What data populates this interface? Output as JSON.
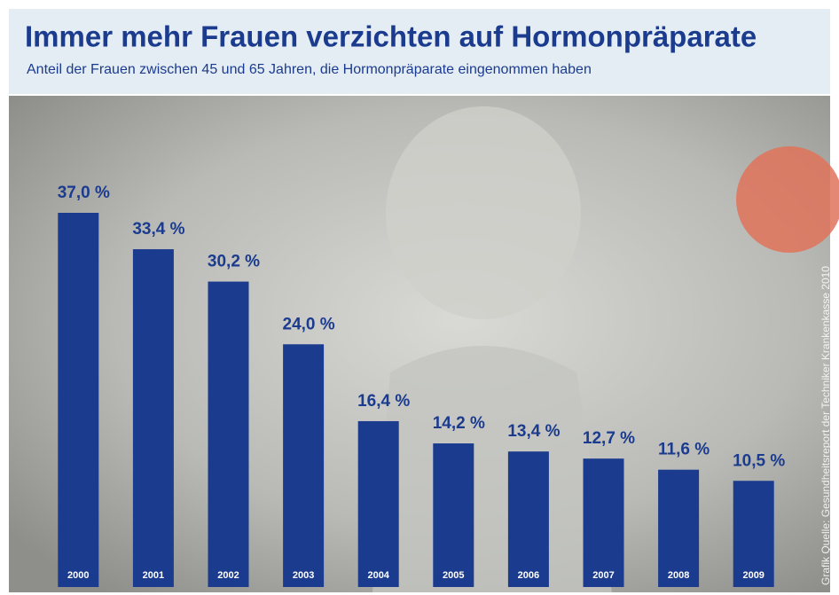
{
  "chart_data": {
    "type": "bar",
    "title": "Immer mehr Frauen verzichten auf Hormonpräparate",
    "subtitle": "Anteil der Frauen zwischen 45 und 65 Jahren, die Hormonpräparate eingenommen haben",
    "source": "Grafik Quelle: Gesundheitsreport der Techniker Krankenkasse 2010",
    "categories": [
      "2000",
      "2001",
      "2002",
      "2003",
      "2004",
      "2005",
      "2006",
      "2007",
      "2008",
      "2009"
    ],
    "values": [
      37.0,
      33.4,
      30.2,
      24.0,
      16.4,
      14.2,
      13.4,
      12.7,
      11.6,
      10.5
    ],
    "value_labels": [
      "37,0 %",
      "33,4 %",
      "30,2 %",
      "24,0 %",
      "16,4 %",
      "14,2 %",
      "13,4 %",
      "12,7 %",
      "11,6 %",
      "10,5 %"
    ],
    "color": "#1b3b8e"
  }
}
